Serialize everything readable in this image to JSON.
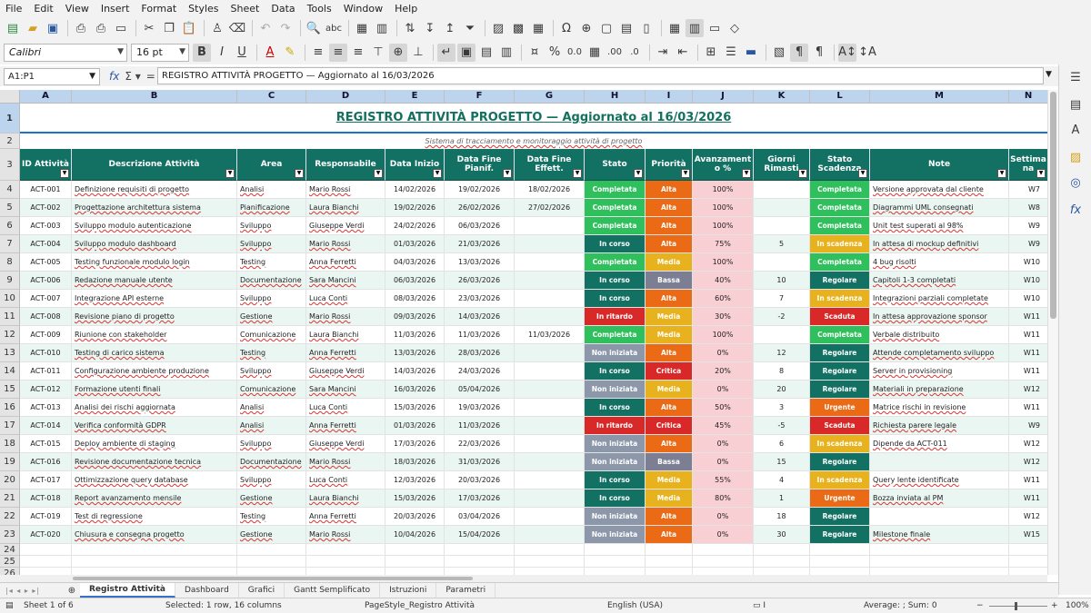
{
  "menu": [
    "File",
    "Edit",
    "View",
    "Insert",
    "Format",
    "Styles",
    "Sheet",
    "Data",
    "Tools",
    "Window",
    "Help"
  ],
  "format_bar": {
    "font_name": "Calibri",
    "font_size": "16 pt"
  },
  "formula_bar": {
    "name_box": "A1:P1",
    "content": "REGISTRO ATTIVITÀ PROGETTO  —  Aggiornato al 16/03/2026"
  },
  "columns": [
    "A",
    "B",
    "C",
    "D",
    "E",
    "F",
    "G",
    "H",
    "I",
    "J",
    "K",
    "L",
    "M",
    "N"
  ],
  "title": "REGISTRO ATTIVITÀ PROGETTO  —  Aggiornato al 16/03/2026",
  "subtitle": "Sistema di tracciamento e monitoraggio attività di progetto",
  "headers": [
    "ID Attività",
    "Descrizione Attività",
    "Area",
    "Responsabile",
    "Data Inizio",
    "Data Fine Pianif.",
    "Data Fine Effett.",
    "Stato",
    "Priorità",
    "Avanzament o %",
    "Giorni Rimasti",
    "Stato Scadenza",
    "Note",
    "Settima na"
  ],
  "rows": [
    [
      "ACT-001",
      "Definizione requisiti di progetto",
      "Analisi",
      "Mario Rossi",
      "14/02/2026",
      "19/02/2026",
      "18/02/2026",
      "Completata",
      "Alta",
      "100%",
      "",
      "Completata",
      "Versione approvata dal cliente",
      "W7"
    ],
    [
      "ACT-002",
      "Progettazione architettura sistema",
      "Pianificazione",
      "Laura Bianchi",
      "19/02/2026",
      "26/02/2026",
      "27/02/2026",
      "Completata",
      "Alta",
      "100%",
      "",
      "Completata",
      "Diagrammi UML consegnati",
      "W8"
    ],
    [
      "ACT-003",
      "Sviluppo modulo autenticazione",
      "Sviluppo",
      "Giuseppe Verdi",
      "24/02/2026",
      "06/03/2026",
      "",
      "Completata",
      "Alta",
      "100%",
      "",
      "Completata",
      "Unit test superati al 98%",
      "W9"
    ],
    [
      "ACT-004",
      "Sviluppo modulo dashboard",
      "Sviluppo",
      "Mario Rossi",
      "01/03/2026",
      "21/03/2026",
      "",
      "In corso",
      "Alta",
      "75%",
      "5",
      "In scadenza",
      "In attesa di mockup definitivi",
      "W9"
    ],
    [
      "ACT-005",
      "Testing funzionale modulo login",
      "Testing",
      "Anna Ferretti",
      "04/03/2026",
      "13/03/2026",
      "",
      "Completata",
      "Media",
      "100%",
      "",
      "Completata",
      "4 bug risolti",
      "W10"
    ],
    [
      "ACT-006",
      "Redazione manuale utente",
      "Documentazione",
      "Sara Mancini",
      "06/03/2026",
      "26/03/2026",
      "",
      "In corso",
      "Bassa",
      "40%",
      "10",
      "Regolare",
      "Capitoli 1-3 completati",
      "W10"
    ],
    [
      "ACT-007",
      "Integrazione API esterne",
      "Sviluppo",
      "Luca Conti",
      "08/03/2026",
      "23/03/2026",
      "",
      "In corso",
      "Alta",
      "60%",
      "7",
      "In scadenza",
      "Integrazioni parziali completate",
      "W10"
    ],
    [
      "ACT-008",
      "Revisione piano di progetto",
      "Gestione",
      "Mario Rossi",
      "09/03/2026",
      "14/03/2026",
      "",
      "In ritardo",
      "Media",
      "30%",
      "-2",
      "Scaduta",
      "In attesa approvazione sponsor",
      "W11"
    ],
    [
      "ACT-009",
      "Riunione con stakeholder",
      "Comunicazione",
      "Laura Bianchi",
      "11/03/2026",
      "11/03/2026",
      "11/03/2026",
      "Completata",
      "Media",
      "100%",
      "",
      "Completata",
      "Verbale distribuito",
      "W11"
    ],
    [
      "ACT-010",
      "Testing di carico sistema",
      "Testing",
      "Anna Ferretti",
      "13/03/2026",
      "28/03/2026",
      "",
      "Non iniziata",
      "Alta",
      "0%",
      "12",
      "Regolare",
      "Attende completamento sviluppo",
      "W11"
    ],
    [
      "ACT-011",
      "Configurazione ambiente produzione",
      "Sviluppo",
      "Giuseppe Verdi",
      "14/03/2026",
      "24/03/2026",
      "",
      "In corso",
      "Critica",
      "20%",
      "8",
      "Regolare",
      "Server in provisioning",
      "W11"
    ],
    [
      "ACT-012",
      "Formazione utenti finali",
      "Comunicazione",
      "Sara Mancini",
      "16/03/2026",
      "05/04/2026",
      "",
      "Non iniziata",
      "Media",
      "0%",
      "20",
      "Regolare",
      "Materiali in preparazione",
      "W12"
    ],
    [
      "ACT-013",
      "Analisi dei rischi aggiornata",
      "Analisi",
      "Luca Conti",
      "15/03/2026",
      "19/03/2026",
      "",
      "In corso",
      "Alta",
      "50%",
      "3",
      "Urgente",
      "Matrice rischi in revisione",
      "W11"
    ],
    [
      "ACT-014",
      "Verifica conformità GDPR",
      "Analisi",
      "Anna Ferretti",
      "01/03/2026",
      "11/03/2026",
      "",
      "In ritardo",
      "Critica",
      "45%",
      "-5",
      "Scaduta",
      "Richiesta parere legale",
      "W9"
    ],
    [
      "ACT-015",
      "Deploy ambiente di staging",
      "Sviluppo",
      "Giuseppe Verdi",
      "17/03/2026",
      "22/03/2026",
      "",
      "Non iniziata",
      "Alta",
      "0%",
      "6",
      "In scadenza",
      "Dipende da ACT-011",
      "W12"
    ],
    [
      "ACT-016",
      "Revisione documentazione tecnica",
      "Documentazione",
      "Mario Rossi",
      "18/03/2026",
      "31/03/2026",
      "",
      "Non iniziata",
      "Bassa",
      "0%",
      "15",
      "Regolare",
      "",
      "W12"
    ],
    [
      "ACT-017",
      "Ottimizzazione query database",
      "Sviluppo",
      "Luca Conti",
      "12/03/2026",
      "20/03/2026",
      "",
      "In corso",
      "Media",
      "55%",
      "4",
      "In scadenza",
      "Query lente identificate",
      "W11"
    ],
    [
      "ACT-018",
      "Report avanzamento mensile",
      "Gestione",
      "Laura Bianchi",
      "15/03/2026",
      "17/03/2026",
      "",
      "In corso",
      "Media",
      "80%",
      "1",
      "Urgente",
      "Bozza inviata al PM",
      "W11"
    ],
    [
      "ACT-019",
      "Test di regressione",
      "Testing",
      "Anna Ferretti",
      "20/03/2026",
      "03/04/2026",
      "",
      "Non iniziata",
      "Alta",
      "0%",
      "18",
      "Regolare",
      "",
      "W12"
    ],
    [
      "ACT-020",
      "Chiusura e consegna progetto",
      "Gestione",
      "Mario Rossi",
      "10/04/2026",
      "15/04/2026",
      "",
      "Non iniziata",
      "Alta",
      "0%",
      "30",
      "Regolare",
      "Milestone finale",
      "W15"
    ]
  ],
  "empty_rows": [
    "24",
    "25",
    "26"
  ],
  "colors": {
    "header": "#137164",
    "stato": {
      "Completata": "#2fbf5c",
      "In corso": "#137164",
      "In ritardo": "#d82828",
      "Non iniziata": "#8c98aa"
    },
    "priorita": {
      "Alta": "#ea6a16",
      "Media": "#e7b21e",
      "Bassa": "#7c7f94",
      "Critica": "#d82828"
    },
    "scadenza": {
      "Completata": "#2fbf5c",
      "In scadenza": "#e7b21e",
      "Regolare": "#137164",
      "Scaduta": "#d82828",
      "Urgente": "#ea6a16"
    },
    "progress_bg": "#f8cfd3",
    "row_alt": "#eaf6f2"
  },
  "sheet_tabs": [
    "Registro Attività",
    "Dashboard",
    "Grafici",
    "Gantt Semplificato",
    "Istruzioni",
    "Parametri"
  ],
  "active_tab": "Registro Attività",
  "status": {
    "sheet": "Sheet 1 of 6",
    "selection": "Selected: 1 row, 16 columns",
    "page_style": "PageStyle_Registro Attività",
    "language": "English (USA)",
    "sum": "Average: ; Sum: 0",
    "zoom": "100%"
  }
}
